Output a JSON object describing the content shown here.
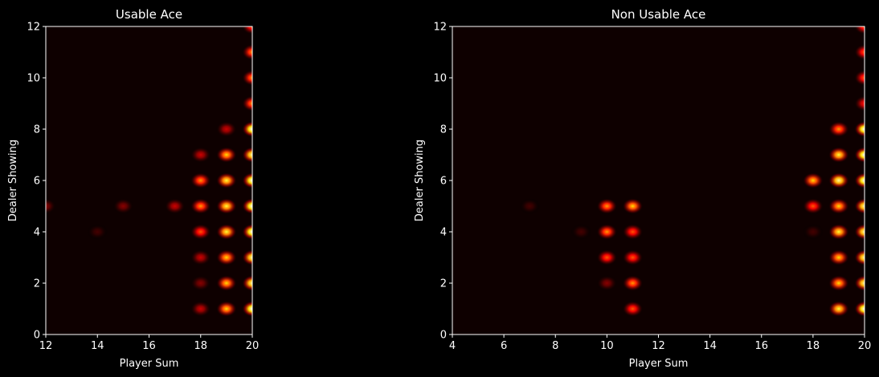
{
  "colors": {
    "background": "#000000",
    "axis": "#ffffff",
    "text": "#ffffff",
    "colormap": "hot"
  },
  "chart_data": [
    {
      "type": "heatmap",
      "title": "Usable Ace",
      "xlabel": "Player Sum",
      "ylabel": "Dealer Showing",
      "xlim": [
        12,
        20
      ],
      "ylim": [
        0,
        12
      ],
      "xticks": [
        "12",
        "14",
        "16",
        "18",
        "20"
      ],
      "yticks": [
        "0",
        "2",
        "4",
        "6",
        "8",
        "10",
        "12"
      ],
      "grid": false,
      "legend": "none",
      "hotspots": [
        {
          "x": 12,
          "y": 5,
          "v": 0.15
        },
        {
          "x": 14,
          "y": 4,
          "v": 0.12
        },
        {
          "x": 15,
          "y": 5,
          "v": 0.15
        },
        {
          "x": 17,
          "y": 5,
          "v": 0.3
        },
        {
          "x": 18,
          "y": 1,
          "v": 0.25
        },
        {
          "x": 18,
          "y": 2,
          "v": 0.2
        },
        {
          "x": 18,
          "y": 3,
          "v": 0.3
        },
        {
          "x": 18,
          "y": 4,
          "v": 0.45
        },
        {
          "x": 18,
          "y": 5,
          "v": 0.55
        },
        {
          "x": 18,
          "y": 6,
          "v": 0.55
        },
        {
          "x": 18,
          "y": 7,
          "v": 0.3
        },
        {
          "x": 19,
          "y": 1,
          "v": 0.7
        },
        {
          "x": 19,
          "y": 2,
          "v": 0.65
        },
        {
          "x": 19,
          "y": 3,
          "v": 0.65
        },
        {
          "x": 19,
          "y": 4,
          "v": 0.75
        },
        {
          "x": 19,
          "y": 5,
          "v": 0.8
        },
        {
          "x": 19,
          "y": 6,
          "v": 0.8
        },
        {
          "x": 19,
          "y": 7,
          "v": 0.65
        },
        {
          "x": 19,
          "y": 8,
          "v": 0.25
        },
        {
          "x": 20,
          "y": 1,
          "v": 0.95
        },
        {
          "x": 20,
          "y": 2,
          "v": 0.9
        },
        {
          "x": 20,
          "y": 3,
          "v": 0.85
        },
        {
          "x": 20,
          "y": 4,
          "v": 0.95
        },
        {
          "x": 20,
          "y": 5,
          "v": 1.0
        },
        {
          "x": 20,
          "y": 6,
          "v": 0.95
        },
        {
          "x": 20,
          "y": 7,
          "v": 0.9
        },
        {
          "x": 20,
          "y": 8,
          "v": 0.95
        },
        {
          "x": 20,
          "y": 9,
          "v": 0.6
        },
        {
          "x": 20,
          "y": 10,
          "v": 0.6
        },
        {
          "x": 20,
          "y": 11,
          "v": 0.55
        },
        {
          "x": 20,
          "y": 12,
          "v": 0.5
        }
      ]
    },
    {
      "type": "heatmap",
      "title": "Non Usable Ace",
      "xlabel": "Player Sum",
      "ylabel": "Dealer Showing",
      "xlim": [
        4,
        20
      ],
      "ylim": [
        0,
        12
      ],
      "xticks": [
        "4",
        "6",
        "8",
        "10",
        "12",
        "14",
        "16",
        "18",
        "20"
      ],
      "yticks": [
        "0",
        "2",
        "4",
        "6",
        "8",
        "10",
        "12"
      ],
      "grid": false,
      "legend": "none",
      "hotspots": [
        {
          "x": 7,
          "y": 5,
          "v": 0.12
        },
        {
          "x": 9,
          "y": 4,
          "v": 0.12
        },
        {
          "x": 10,
          "y": 2,
          "v": 0.2
        },
        {
          "x": 10,
          "y": 3,
          "v": 0.45
        },
        {
          "x": 10,
          "y": 4,
          "v": 0.55
        },
        {
          "x": 10,
          "y": 5,
          "v": 0.6
        },
        {
          "x": 11,
          "y": 1,
          "v": 0.45
        },
        {
          "x": 11,
          "y": 2,
          "v": 0.6
        },
        {
          "x": 11,
          "y": 3,
          "v": 0.5
        },
        {
          "x": 11,
          "y": 4,
          "v": 0.45
        },
        {
          "x": 11,
          "y": 5,
          "v": 0.7
        },
        {
          "x": 18,
          "y": 4,
          "v": 0.12
        },
        {
          "x": 18,
          "y": 5,
          "v": 0.5
        },
        {
          "x": 18,
          "y": 6,
          "v": 0.7
        },
        {
          "x": 19,
          "y": 1,
          "v": 0.75
        },
        {
          "x": 19,
          "y": 2,
          "v": 0.7
        },
        {
          "x": 19,
          "y": 3,
          "v": 0.65
        },
        {
          "x": 19,
          "y": 4,
          "v": 0.75
        },
        {
          "x": 19,
          "y": 5,
          "v": 0.7
        },
        {
          "x": 19,
          "y": 6,
          "v": 0.9
        },
        {
          "x": 19,
          "y": 7,
          "v": 0.8
        },
        {
          "x": 19,
          "y": 8,
          "v": 0.6
        },
        {
          "x": 20,
          "y": 1,
          "v": 0.95
        },
        {
          "x": 20,
          "y": 2,
          "v": 0.9
        },
        {
          "x": 20,
          "y": 3,
          "v": 0.85
        },
        {
          "x": 20,
          "y": 4,
          "v": 0.9
        },
        {
          "x": 20,
          "y": 5,
          "v": 0.9
        },
        {
          "x": 20,
          "y": 6,
          "v": 1.0
        },
        {
          "x": 20,
          "y": 7,
          "v": 0.95
        },
        {
          "x": 20,
          "y": 8,
          "v": 1.0
        },
        {
          "x": 20,
          "y": 9,
          "v": 0.4
        },
        {
          "x": 20,
          "y": 10,
          "v": 0.5
        },
        {
          "x": 20,
          "y": 11,
          "v": 0.5
        },
        {
          "x": 20,
          "y": 12,
          "v": 0.45
        }
      ]
    }
  ]
}
